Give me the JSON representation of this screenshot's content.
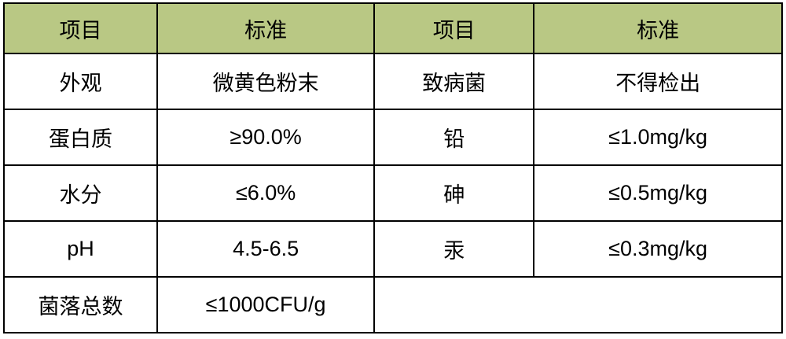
{
  "table": {
    "header_bg": "#b9c884",
    "border_color": "#000000",
    "columns": [
      "项目",
      "标准",
      "项目",
      "标准"
    ],
    "rows": [
      {
        "c1": "外观",
        "c2": "微黄色粉末",
        "c3": "致病菌",
        "c4": "不得检出"
      },
      {
        "c1": "蛋白质",
        "c2": "≥90.0%",
        "c3": "铅",
        "c4": "≤1.0mg/kg"
      },
      {
        "c1": "水分",
        "c2": "≤6.0%",
        "c3": "砷",
        "c4": "≤0.5mg/kg"
      },
      {
        "c1": "pH",
        "c2": "4.5-6.5",
        "c3": "汞",
        "c4": "≤0.3mg/kg"
      },
      {
        "c1": "菌落总数",
        "c2": "≤1000CFU/g",
        "c3": "",
        "c4": ""
      }
    ]
  }
}
